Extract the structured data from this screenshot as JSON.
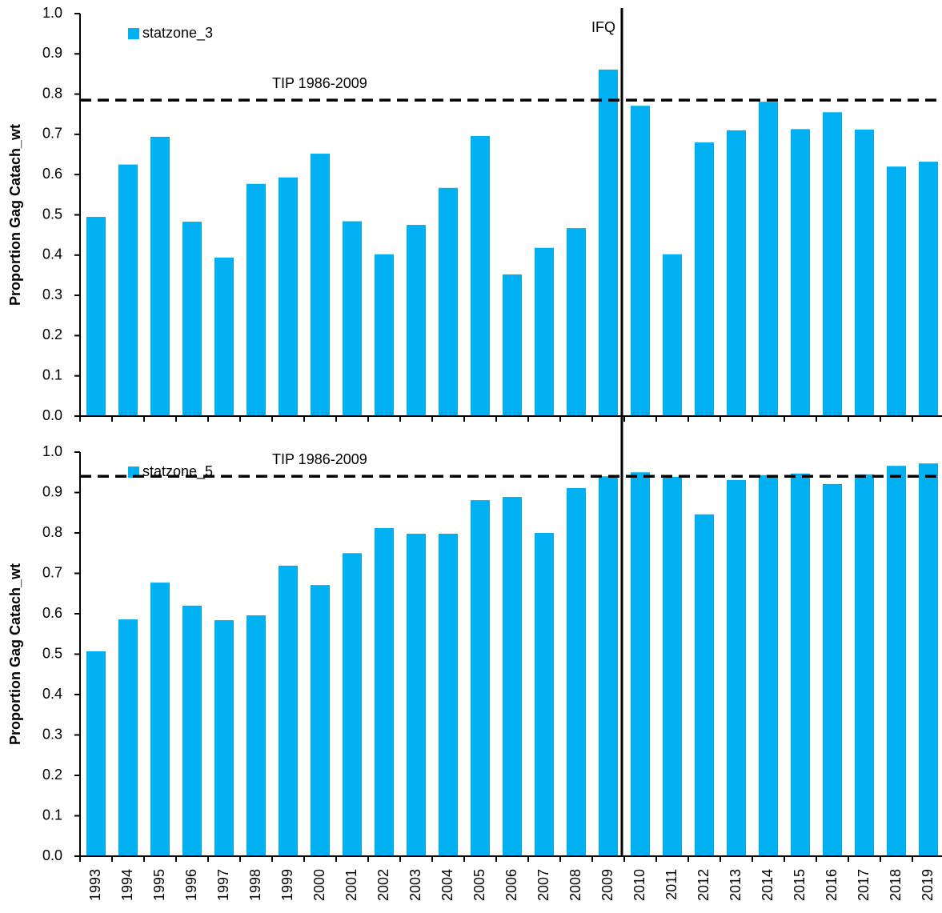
{
  "chart_data": [
    {
      "type": "bar",
      "y_label": "Proportion Gag Catach_wt",
      "annotation": "IFQ",
      "legend": "upper left",
      "series": [
        {
          "name": "statzone_3",
          "color": "#00b0f0",
          "values": [
            0.495,
            0.625,
            0.694,
            0.483,
            0.394,
            0.577,
            0.593,
            0.652,
            0.484,
            0.402,
            0.475,
            0.567,
            0.696,
            0.352,
            0.418,
            0.467,
            0.861,
            0.771,
            0.402,
            0.68,
            0.71,
            0.781,
            0.713,
            0.755,
            0.712,
            0.62,
            0.632
          ]
        }
      ],
      "reference_line": {
        "value": 0.785,
        "label": "TIP 1986-2009"
      },
      "ylim": [
        0,
        1
      ],
      "yticks": [
        {
          "value": 0,
          "label": "0.0"
        },
        0.1,
        0.2,
        0.3,
        0.4,
        0.5,
        0.6,
        0.7,
        0.8,
        0.9,
        {
          "value": 1,
          "label": "1.0"
        }
      ]
    },
    {
      "type": "bar",
      "y_label": "Proportion Gag Catach_wt",
      "legend": "upper left",
      "categories": [
        "1993",
        "1994",
        "1995",
        "1996",
        "1997",
        "1998",
        "1999",
        "2000",
        "2001",
        "2002",
        "2003",
        "2004",
        "2005",
        "2006",
        "2007",
        "2008",
        "2009",
        "2010",
        "2011",
        "2012",
        "2013",
        "2014",
        "2015",
        "2016",
        "2017",
        "2018",
        "2019"
      ],
      "series": [
        {
          "name": "statzone_5",
          "color": "#00b0f0",
          "values": [
            0.507,
            0.586,
            0.677,
            0.62,
            0.584,
            0.596,
            0.719,
            0.671,
            0.75,
            0.812,
            0.798,
            0.798,
            0.881,
            0.889,
            0.8,
            0.911,
            0.94,
            0.95,
            0.939,
            0.846,
            0.931,
            0.943,
            0.947,
            0.921,
            0.945,
            0.966,
            0.972
          ]
        }
      ],
      "reference_line": {
        "value": 0.94,
        "label": "TIP 1986-2009"
      },
      "ylim": [
        0,
        1
      ],
      "yticks": [
        {
          "value": 0,
          "label": "0.0"
        },
        0.1,
        0.2,
        0.3,
        0.4,
        0.5,
        0.6,
        0.7,
        0.8,
        0.9,
        {
          "value": 1,
          "label": "1.0"
        }
      ]
    }
  ]
}
